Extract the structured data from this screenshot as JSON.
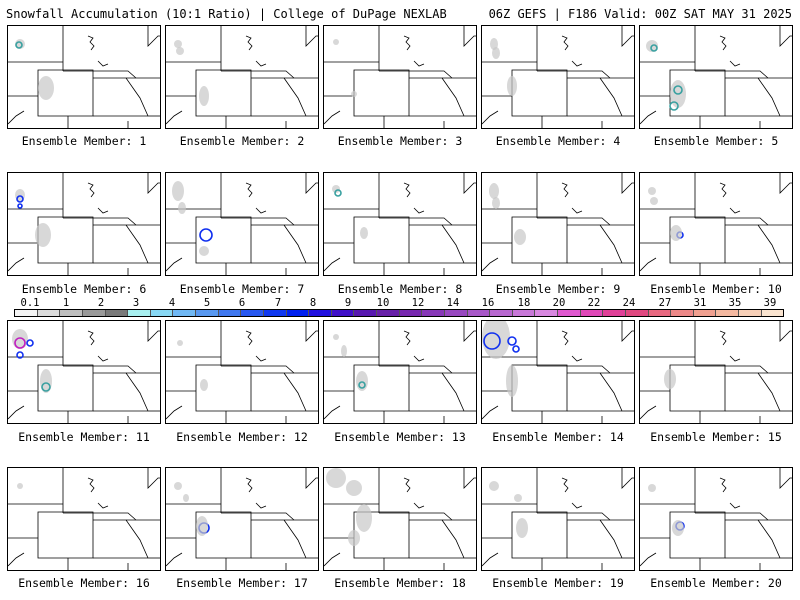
{
  "header": {
    "left_title": "Snowfall Accumulation (10:1 Ratio) | College of DuPage NEXLAB",
    "right_title": "06Z GEFS | F186 Valid: 00Z SAT MAY 31 2025"
  },
  "colorbar": {
    "labels": [
      "0.1",
      "1",
      "2",
      "3",
      "4",
      "5",
      "6",
      "7",
      "8",
      "9",
      "10",
      "12",
      "14",
      "16",
      "18",
      "20",
      "22",
      "24",
      "27",
      "31",
      "35",
      "39"
    ],
    "colors": [
      "#f4f4f4",
      "#dcdcdc",
      "#bebebe",
      "#9a9a9a",
      "#7a7a7a",
      "#a8f0f0",
      "#88d8f4",
      "#70b8f4",
      "#5898f0",
      "#4078f0",
      "#2858f0",
      "#1038f0",
      "#0020f0",
      "#2010e0",
      "#4010c8",
      "#5818b0",
      "#6820a8",
      "#7828b0",
      "#8838b8",
      "#9848c0",
      "#a858c8",
      "#b868d0",
      "#c878d8",
      "#d888e0",
      "#e058d0",
      "#e048b8",
      "#e04098",
      "#e04880",
      "#e86880",
      "#ec8888",
      "#f0a090",
      "#f4b8a0",
      "#f8d0b8",
      "#fae4d0"
    ]
  },
  "members": [
    {
      "label": "Ensemble Member: 1"
    },
    {
      "label": "Ensemble Member: 2"
    },
    {
      "label": "Ensemble Member: 3"
    },
    {
      "label": "Ensemble Member: 4"
    },
    {
      "label": "Ensemble Member: 5"
    },
    {
      "label": "Ensemble Member: 6"
    },
    {
      "label": "Ensemble Member: 7"
    },
    {
      "label": "Ensemble Member: 8"
    },
    {
      "label": "Ensemble Member: 9"
    },
    {
      "label": "Ensemble Member: 10"
    },
    {
      "label": "Ensemble Member: 11"
    },
    {
      "label": "Ensemble Member: 12"
    },
    {
      "label": "Ensemble Member: 13"
    },
    {
      "label": "Ensemble Member: 14"
    },
    {
      "label": "Ensemble Member: 15"
    },
    {
      "label": "Ensemble Member: 16"
    },
    {
      "label": "Ensemble Member: 17"
    },
    {
      "label": "Ensemble Member: 18"
    },
    {
      "label": "Ensemble Member: 19"
    },
    {
      "label": "Ensemble Member: 20"
    }
  ],
  "colors": {
    "border": "#000000",
    "state_lines": "#000000",
    "light_snow": "#c8c8c8",
    "heavy_snow": "#1030f0"
  }
}
